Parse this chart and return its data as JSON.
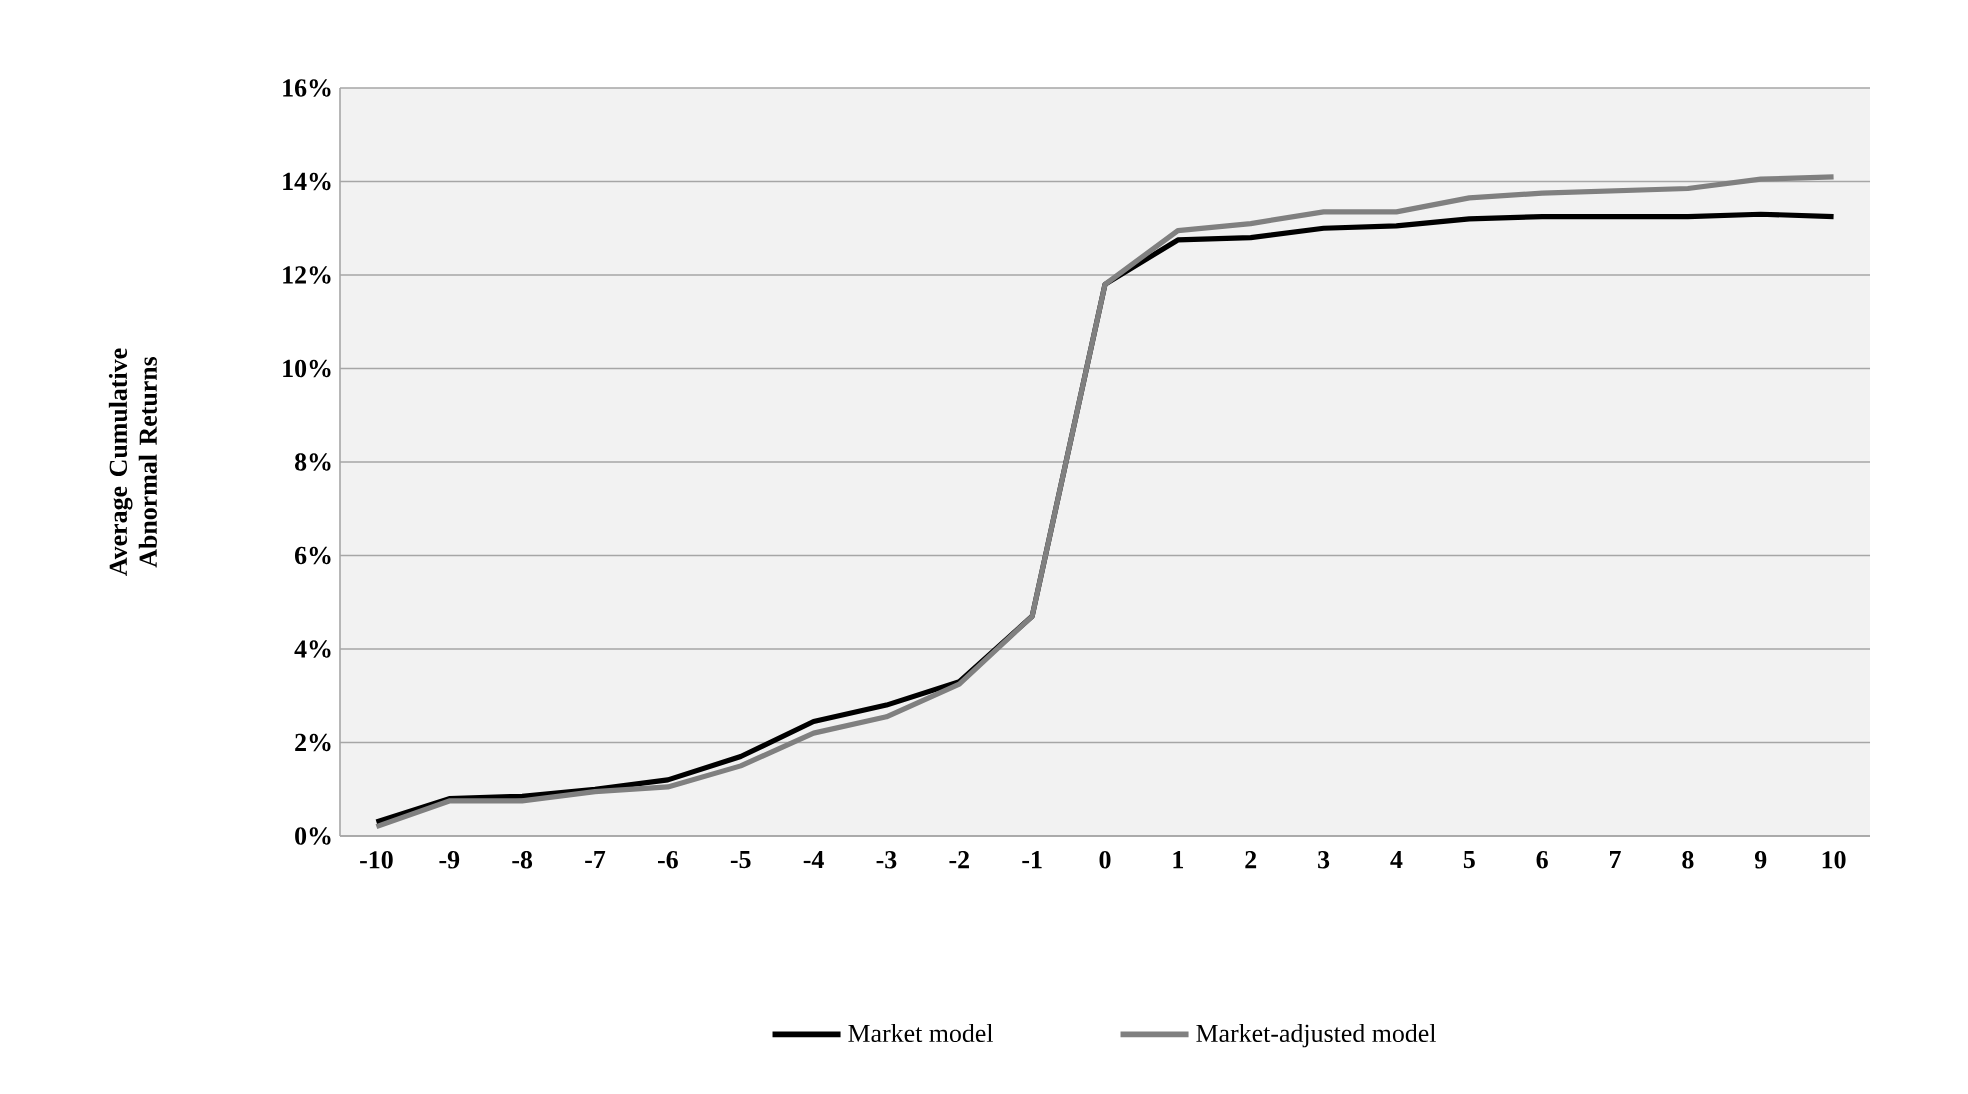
{
  "chart_data": {
    "type": "line",
    "ylabel": "Average Cumulative Abnormal Returns",
    "categories": [
      "-10",
      "-9",
      "-8",
      "-7",
      "-6",
      "-5",
      "-4",
      "-3",
      "-2",
      "-1",
      "0",
      "1",
      "2",
      "3",
      "4",
      "5",
      "6",
      "7",
      "8",
      "9",
      "10"
    ],
    "series": [
      {
        "name": "Market model",
        "color": "#000000",
        "values": [
          0.3,
          0.8,
          0.85,
          1.0,
          1.2,
          1.7,
          2.45,
          2.8,
          3.3,
          4.7,
          11.8,
          12.75,
          12.8,
          13.0,
          13.05,
          13.2,
          13.25,
          13.25,
          13.25,
          13.3,
          13.25
        ]
      },
      {
        "name": "Market-adjusted model",
        "color": "#808080",
        "values": [
          0.2,
          0.75,
          0.75,
          0.95,
          1.05,
          1.5,
          2.2,
          2.55,
          3.25,
          4.7,
          11.8,
          12.95,
          13.1,
          13.35,
          13.35,
          13.65,
          13.75,
          13.8,
          13.85,
          14.05,
          14.1
        ]
      }
    ],
    "ylim": [
      0,
      16
    ],
    "yticks": [
      {
        "value": 0,
        "label": "0%"
      },
      {
        "value": 2,
        "label": "2%"
      },
      {
        "value": 4,
        "label": "4%"
      },
      {
        "value": 6,
        "label": "6%"
      },
      {
        "value": 8,
        "label": "8%"
      },
      {
        "value": 10,
        "label": "10%"
      },
      {
        "value": 12,
        "label": "12%"
      },
      {
        "value": 14,
        "label": "14%"
      },
      {
        "value": 16,
        "label": "16%"
      }
    ],
    "grid": "y",
    "legend": "bottom",
    "marker": "none",
    "line_style": "solid"
  }
}
